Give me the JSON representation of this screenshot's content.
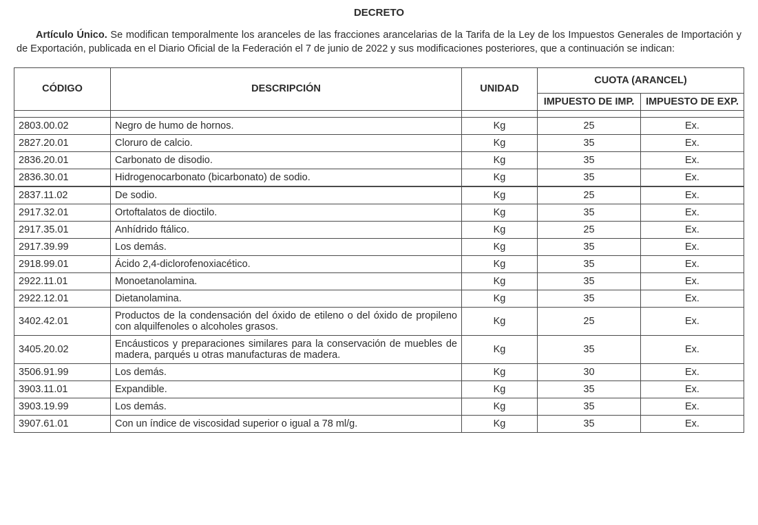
{
  "document": {
    "title": "DECRETO",
    "article_lead": "Artículo Único.",
    "article_text": "Se modifican temporalmente los aranceles de las fracciones arancelarias de la Tarifa de la Ley de los Impuestos Generales de Importación y de Exportación, publicada en el Diario Oficial de la Federación el 7 de junio de 2022 y sus modificaciones posteriores, que a continuación se indican:"
  },
  "table": {
    "headers": {
      "code": "CÓDIGO",
      "desc": "DESCRIPCIÓN",
      "unit": "UNIDAD",
      "quota_group": "CUOTA (ARANCEL)",
      "imp": "IMPUESTO DE IMP.",
      "exp": "IMPUESTO DE EXP."
    },
    "columns": [
      "code",
      "desc",
      "unit",
      "imp",
      "exp"
    ],
    "rows": [
      {
        "code": "2803.00.02",
        "desc": "Negro de humo de hornos.",
        "unit": "Kg",
        "imp": "25",
        "exp": "Ex."
      },
      {
        "code": "2827.20.01",
        "desc": "Cloruro de calcio.",
        "unit": "Kg",
        "imp": "35",
        "exp": "Ex."
      },
      {
        "code": "2836.20.01",
        "desc": "Carbonato de disodio.",
        "unit": "Kg",
        "imp": "35",
        "exp": "Ex."
      },
      {
        "code": "2836.30.01",
        "desc": "Hidrogenocarbonato (bicarbonato) de sodio.",
        "unit": "Kg",
        "imp": "35",
        "exp": "Ex."
      },
      {
        "code": "2837.11.02",
        "desc": "De sodio.",
        "unit": "Kg",
        "imp": "25",
        "exp": "Ex.",
        "gap": true
      },
      {
        "code": "2917.32.01",
        "desc": "Ortoftalatos de dioctilo.",
        "unit": "Kg",
        "imp": "35",
        "exp": "Ex."
      },
      {
        "code": "2917.35.01",
        "desc": "Anhídrido ftálico.",
        "unit": "Kg",
        "imp": "25",
        "exp": "Ex."
      },
      {
        "code": "2917.39.99",
        "desc": "Los demás.",
        "unit": "Kg",
        "imp": "35",
        "exp": "Ex."
      },
      {
        "code": "2918.99.01",
        "desc": "Ácido 2,4-diclorofenoxiacético.",
        "unit": "Kg",
        "imp": "35",
        "exp": "Ex."
      },
      {
        "code": "2922.11.01",
        "desc": "Monoetanolamina.",
        "unit": "Kg",
        "imp": "35",
        "exp": "Ex."
      },
      {
        "code": "2922.12.01",
        "desc": "Dietanolamina.",
        "unit": "Kg",
        "imp": "35",
        "exp": "Ex."
      },
      {
        "code": "3402.42.01",
        "desc": "Productos de la condensación del óxido de etileno o del óxido de propileno con alquilfenoles o alcoholes grasos.",
        "unit": "Kg",
        "imp": "25",
        "exp": "Ex."
      },
      {
        "code": "3405.20.02",
        "desc": "Encáusticos y preparaciones similares para la conservación de muebles de madera, parqués u otras manufacturas de madera.",
        "unit": "Kg",
        "imp": "35",
        "exp": "Ex."
      },
      {
        "code": "3506.91.99",
        "desc": "Los demás.",
        "unit": "Kg",
        "imp": "30",
        "exp": "Ex."
      },
      {
        "code": "3903.11.01",
        "desc": "Expandible.",
        "unit": "Kg",
        "imp": "35",
        "exp": "Ex."
      },
      {
        "code": "3903.19.99",
        "desc": "Los demás.",
        "unit": "Kg",
        "imp": "35",
        "exp": "Ex."
      },
      {
        "code": "3907.61.01",
        "desc": "Con un índice de viscosidad superior o igual a 78 ml/g.",
        "unit": "Kg",
        "imp": "35",
        "exp": "Ex."
      }
    ]
  },
  "styles": {
    "font_family": "Arial",
    "base_fontsize_pt": 11,
    "title_fontsize_pt": 11,
    "text_color": "#2b2b2b",
    "border_color": "#4a4a4a",
    "background_color": "#ffffff"
  }
}
